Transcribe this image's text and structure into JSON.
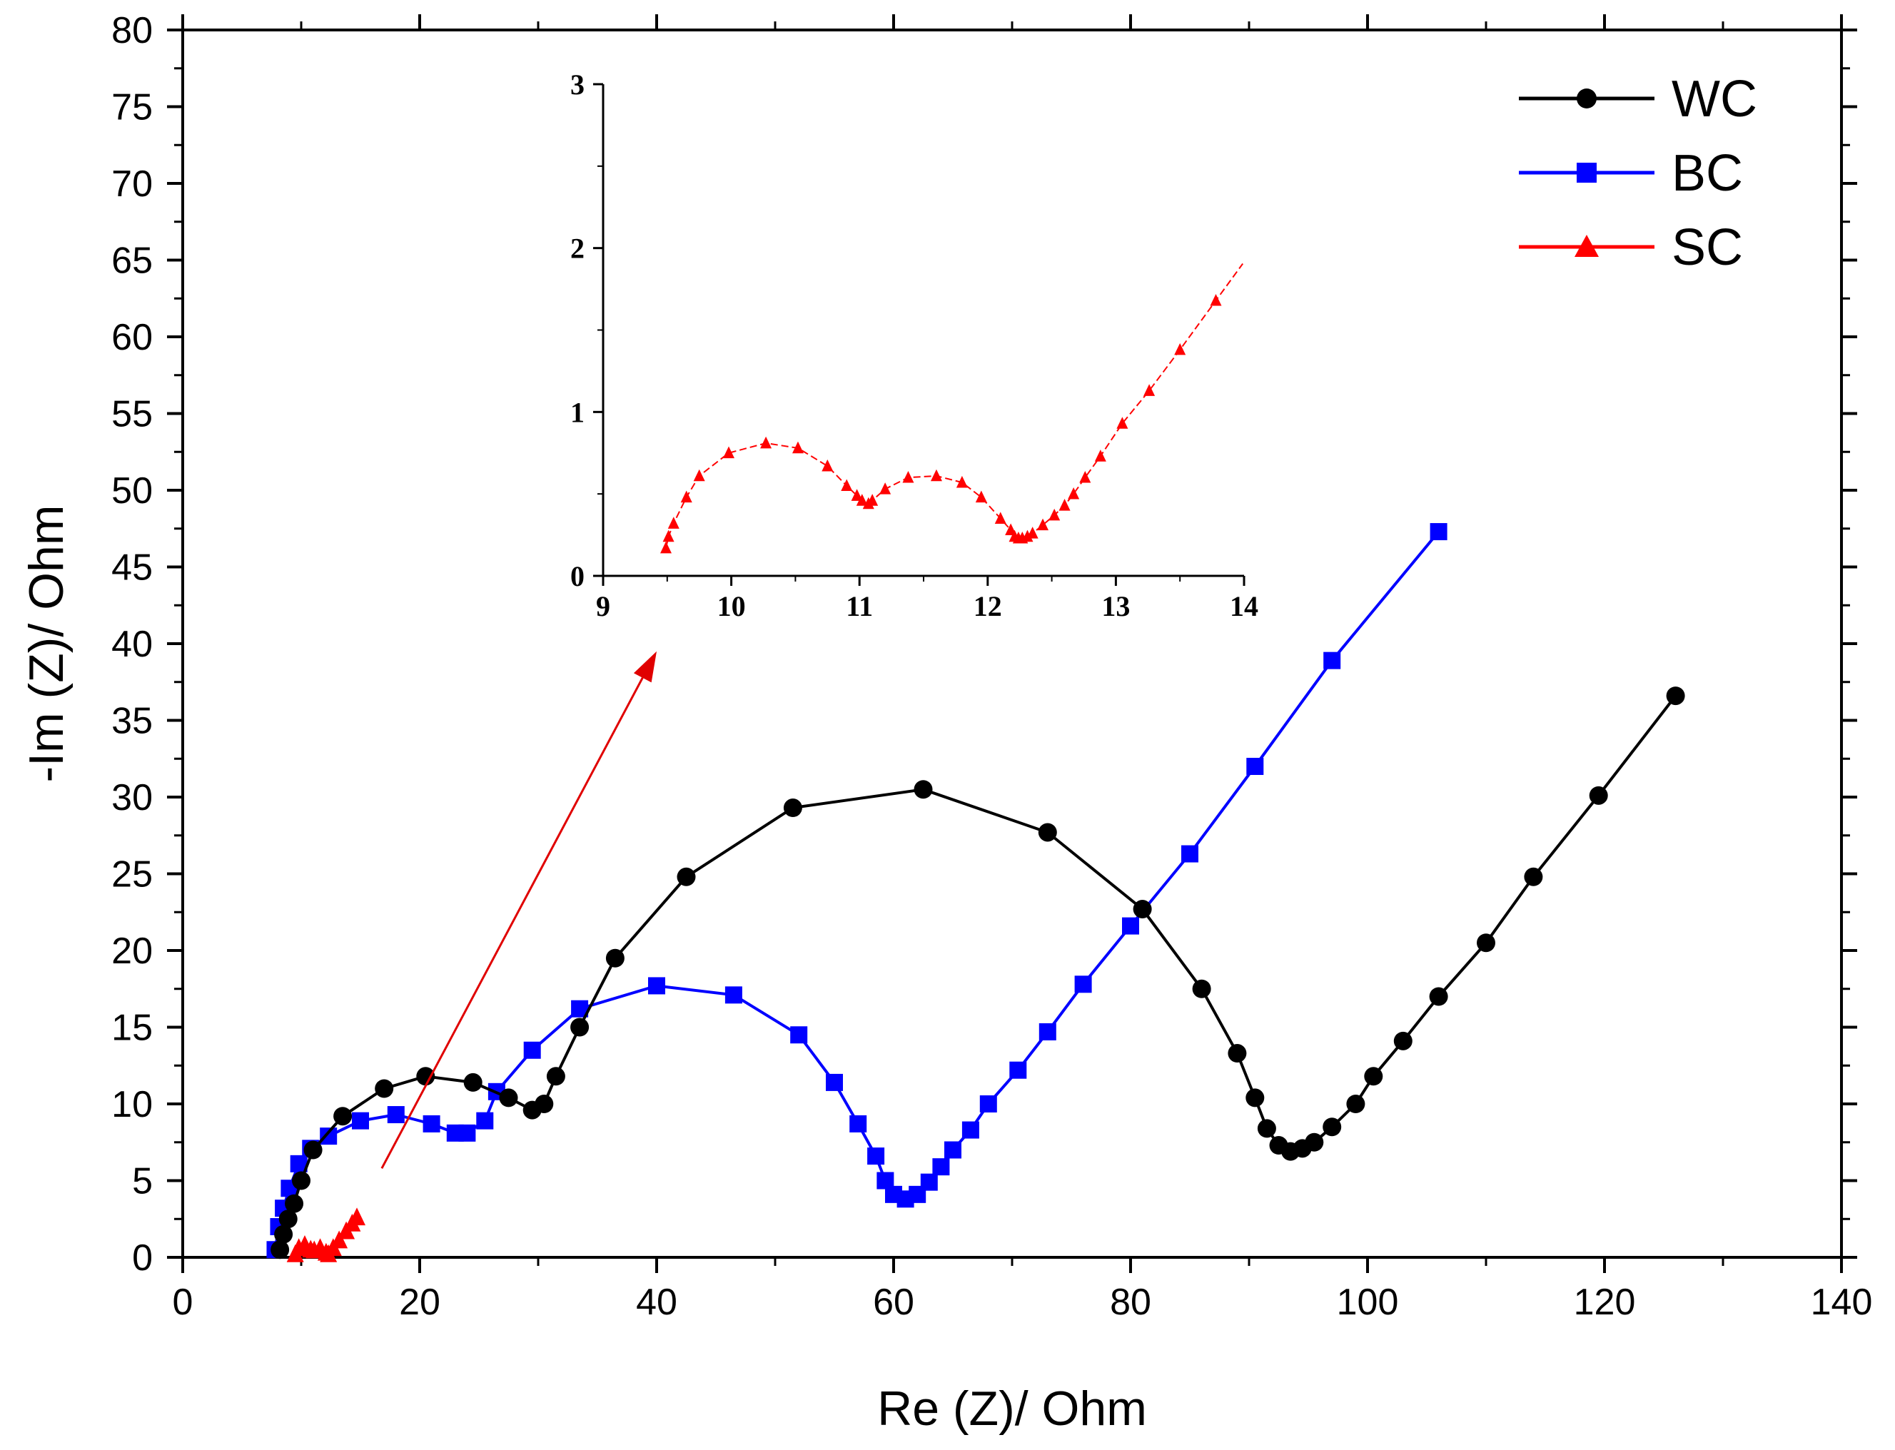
{
  "chart_data": [
    {
      "type": "line",
      "role": "main",
      "xlabel": "Re (Z)/ Ohm",
      "ylabel": "-Im (Z)/ Ohm",
      "xlim": [
        0,
        140
      ],
      "ylim": [
        0,
        80
      ],
      "xticks": [
        0,
        20,
        40,
        60,
        80,
        100,
        120,
        140
      ],
      "yticks": [
        0,
        5,
        10,
        15,
        20,
        25,
        30,
        35,
        40,
        45,
        50,
        55,
        60,
        65,
        70,
        75,
        80
      ],
      "xtick_labels": [
        "0",
        "20",
        "40",
        "60",
        "80",
        "100",
        "120",
        "140"
      ],
      "ytick_labels": [
        "0",
        "5",
        "10",
        "15",
        "20",
        "25",
        "30",
        "35",
        "40",
        "45",
        "50",
        "55",
        "60",
        "65",
        "70",
        "75",
        "80"
      ],
      "legend": {
        "position": "top-right",
        "entries": [
          "WC",
          "BC",
          "SC"
        ]
      },
      "series": [
        {
          "name": "WC",
          "color": "#000000",
          "marker": "circle",
          "x": [
            8.2,
            8.5,
            8.9,
            9.4,
            10.0,
            11.0,
            13.5,
            17.0,
            20.5,
            24.5,
            27.5,
            29.5,
            30.5,
            31.5,
            33.5,
            36.5,
            42.5,
            51.5,
            62.5,
            73.0,
            81.0,
            86.0,
            89.0,
            90.5,
            91.5,
            92.5,
            93.5,
            94.5,
            95.5,
            97.0,
            99.0,
            100.5,
            103.0,
            106.0,
            110.0,
            114.0,
            119.5,
            126.0
          ],
          "y": [
            0.5,
            1.5,
            2.5,
            3.5,
            5.0,
            7.0,
            9.2,
            11.0,
            11.8,
            11.4,
            10.4,
            9.6,
            10.0,
            11.8,
            15.0,
            19.5,
            24.8,
            29.3,
            30.5,
            27.7,
            22.7,
            17.5,
            13.3,
            10.4,
            8.4,
            7.3,
            6.9,
            7.1,
            7.5,
            8.5,
            10.0,
            11.8,
            14.1,
            17.0,
            20.5,
            24.8,
            30.1,
            36.6
          ]
        },
        {
          "name": "BC",
          "color": "#0000ff",
          "marker": "square",
          "x": [
            7.8,
            8.1,
            8.5,
            9.0,
            9.8,
            10.8,
            12.3,
            15.0,
            18.0,
            21.0,
            23.0,
            24.0,
            25.5,
            26.5,
            29.5,
            33.5,
            40.0,
            46.5,
            52.0,
            55.0,
            57.0,
            58.5,
            59.3,
            60.0,
            61.0,
            62.0,
            63.0,
            64.0,
            65.0,
            66.5,
            68.0,
            70.5,
            73.0,
            76.0,
            80.0,
            85.0,
            90.5,
            97.0,
            106.0
          ],
          "y": [
            0.5,
            2.0,
            3.2,
            4.5,
            6.1,
            7.1,
            7.9,
            8.9,
            9.3,
            8.7,
            8.1,
            8.1,
            8.9,
            10.8,
            13.5,
            16.2,
            17.7,
            17.1,
            14.5,
            11.4,
            8.7,
            6.6,
            5.0,
            4.1,
            3.8,
            4.1,
            4.9,
            5.9,
            7.0,
            8.3,
            10.0,
            12.2,
            14.7,
            17.8,
            21.6,
            26.3,
            32.0,
            38.9,
            47.3
          ]
        },
        {
          "name": "SC",
          "color": "#ff0000",
          "marker": "triangle",
          "x": [
            9.5,
            9.8,
            10.3,
            10.8,
            11.1,
            11.6,
            12.1,
            12.3,
            12.7,
            13.2,
            13.8,
            14.3,
            14.7
          ],
          "y": [
            0.2,
            0.6,
            0.8,
            0.5,
            0.45,
            0.6,
            0.3,
            0.2,
            0.6,
            1.1,
            1.7,
            2.2,
            2.6
          ]
        }
      ],
      "annotation": {
        "type": "arrow",
        "color": "#e00000",
        "from": [
          16.8,
          5.8
        ],
        "to": [
          40.0,
          39.5
        ]
      }
    },
    {
      "type": "line",
      "role": "inset",
      "xlim": [
        9,
        14
      ],
      "ylim": [
        0,
        3
      ],
      "xticks": [
        9,
        10,
        11,
        12,
        13,
        14
      ],
      "yticks": [
        0,
        1,
        2,
        3
      ],
      "xtick_labels": [
        "9",
        "10",
        "11",
        "12",
        "13",
        "14"
      ],
      "ytick_labels": [
        "0",
        "1",
        "2",
        "3"
      ],
      "series": [
        {
          "name": "SC",
          "color": "#ff0000",
          "marker": "triangle",
          "line_style": "dashed",
          "x": [
            9.49,
            9.51,
            9.55,
            9.65,
            9.75,
            9.98,
            10.27,
            10.52,
            10.75,
            10.9,
            10.98,
            11.02,
            11.07,
            11.1,
            11.2,
            11.38,
            11.6,
            11.8,
            11.95,
            12.1,
            12.18,
            12.21,
            12.24,
            12.27,
            12.31,
            12.35,
            12.43,
            12.52,
            12.6,
            12.67,
            12.76,
            12.88,
            13.05,
            13.26,
            13.5,
            13.78
          ],
          "y": [
            0.17,
            0.24,
            0.32,
            0.48,
            0.61,
            0.75,
            0.81,
            0.78,
            0.67,
            0.55,
            0.49,
            0.46,
            0.44,
            0.46,
            0.53,
            0.6,
            0.61,
            0.57,
            0.48,
            0.35,
            0.28,
            0.24,
            0.23,
            0.23,
            0.24,
            0.26,
            0.31,
            0.37,
            0.43,
            0.5,
            0.6,
            0.73,
            0.93,
            1.13,
            1.38,
            1.68
          ]
        }
      ]
    }
  ]
}
